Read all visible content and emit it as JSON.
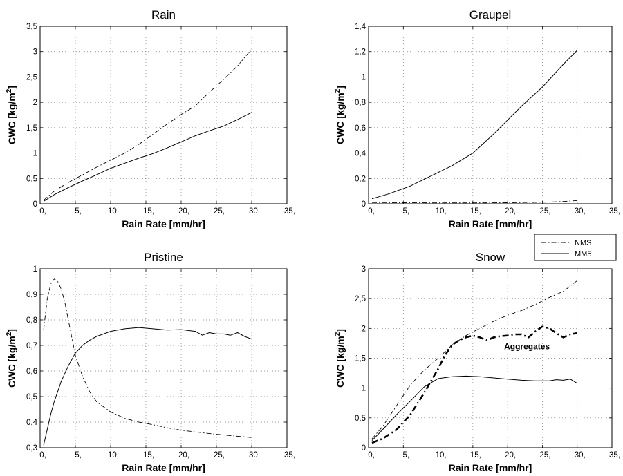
{
  "chart_data": [
    {
      "type": "line",
      "title": "Rain",
      "xlabel": "Rain Rate [mm/hr]",
      "ylabel": "CWC [kg/m",
      "ylabel_sup": "2",
      "ylabel_end": "]",
      "xlim": [
        0,
        35
      ],
      "ylim": [
        0,
        3.5
      ],
      "xticks": [
        "0,",
        "5,",
        "10,",
        "15,",
        "20,",
        "25,",
        "30,",
        "35,"
      ],
      "yticks": [
        "0",
        "0,5",
        "1",
        "1,5",
        "2",
        "2,5",
        "3",
        "3,5"
      ],
      "grid": true,
      "series": [
        {
          "name": "NMS",
          "style": "dashdot",
          "x": [
            0.5,
            2,
            4,
            6,
            8,
            10,
            12,
            14,
            16,
            18,
            20,
            22,
            24,
            26,
            28,
            30
          ],
          "y": [
            0.07,
            0.25,
            0.42,
            0.57,
            0.72,
            0.86,
            1.0,
            1.17,
            1.37,
            1.57,
            1.76,
            1.93,
            2.2,
            2.45,
            2.72,
            3.05
          ]
        },
        {
          "name": "MM5",
          "style": "solid",
          "x": [
            0.5,
            2,
            4,
            6,
            8,
            10,
            12,
            14,
            16,
            18,
            20,
            22,
            24,
            26,
            28,
            30
          ],
          "y": [
            0.05,
            0.18,
            0.32,
            0.45,
            0.57,
            0.7,
            0.8,
            0.9,
            0.99,
            1.1,
            1.22,
            1.34,
            1.44,
            1.53,
            1.66,
            1.8
          ]
        }
      ]
    },
    {
      "type": "line",
      "title": "Graupel",
      "xlabel": "Rain Rate [mm/hr]",
      "ylabel": "CWC [kg/m",
      "ylabel_sup": "2",
      "ylabel_end": "]",
      "xlim": [
        0,
        35
      ],
      "ylim": [
        0,
        1.4
      ],
      "xticks": [
        "0,",
        "5,",
        "10,",
        "15,",
        "20,",
        "25,",
        "30,",
        "35,"
      ],
      "yticks": [
        "0",
        "0,2",
        "0,4",
        "0,6",
        "0,8",
        "1",
        "1,2",
        "1,4"
      ],
      "grid": true,
      "series": [
        {
          "name": "NMS",
          "style": "dashdot",
          "x": [
            0.5,
            5,
            10,
            15,
            20,
            25,
            28,
            30
          ],
          "y": [
            0.01,
            0.008,
            0.007,
            0.007,
            0.008,
            0.012,
            0.018,
            0.025
          ]
        },
        {
          "name": "MM5",
          "style": "solid",
          "x": [
            0.5,
            3,
            6,
            9,
            12,
            15,
            18,
            20,
            22,
            25,
            28,
            30
          ],
          "y": [
            0.04,
            0.08,
            0.14,
            0.22,
            0.3,
            0.4,
            0.55,
            0.66,
            0.77,
            0.92,
            1.1,
            1.21
          ]
        }
      ]
    },
    {
      "type": "line",
      "title": "Pristine",
      "xlabel": "Rain Rate [mm/hr]",
      "ylabel": "CWC [kg/m",
      "ylabel_sup": "2",
      "ylabel_end": "]",
      "xlim": [
        0,
        35
      ],
      "ylim": [
        0.3,
        1.0
      ],
      "xticks": [
        "0,",
        "5,",
        "10,",
        "15,",
        "20,",
        "25,",
        "30,",
        "35,"
      ],
      "yticks": [
        "0,3",
        "0,4",
        "0,5",
        "0,6",
        "0,7",
        "0,8",
        "0,9",
        "1"
      ],
      "grid": true,
      "series": [
        {
          "name": "NMS",
          "style": "dashdot",
          "x": [
            0.5,
            1,
            1.5,
            2,
            2.5,
            3,
            3.5,
            4,
            4.5,
            5,
            6,
            7,
            8,
            10,
            12,
            14,
            16,
            18,
            20,
            22,
            24,
            26,
            28,
            30
          ],
          "y": [
            0.76,
            0.88,
            0.94,
            0.96,
            0.95,
            0.92,
            0.87,
            0.8,
            0.73,
            0.66,
            0.58,
            0.52,
            0.48,
            0.44,
            0.415,
            0.4,
            0.39,
            0.378,
            0.368,
            0.362,
            0.355,
            0.35,
            0.345,
            0.34
          ]
        },
        {
          "name": "MM5",
          "style": "solid",
          "x": [
            0.5,
            1,
            1.5,
            2,
            3,
            4,
            5,
            6,
            7,
            8,
            9,
            10,
            12,
            14,
            16,
            18,
            20,
            22,
            23,
            24,
            25,
            26,
            27,
            28,
            29,
            30
          ],
          "y": [
            0.31,
            0.37,
            0.43,
            0.48,
            0.56,
            0.62,
            0.67,
            0.7,
            0.72,
            0.735,
            0.745,
            0.755,
            0.765,
            0.77,
            0.765,
            0.76,
            0.762,
            0.755,
            0.74,
            0.75,
            0.745,
            0.745,
            0.74,
            0.75,
            0.735,
            0.725
          ]
        }
      ]
    },
    {
      "type": "line",
      "title": "Snow",
      "xlabel": "Rain Rate [mm/hr]",
      "ylabel": "CWC [kg/m",
      "ylabel_sup": "2",
      "ylabel_end": "]",
      "xlim": [
        0,
        35
      ],
      "ylim": [
        0,
        3
      ],
      "xticks": [
        "0,",
        "5,",
        "10,",
        "15,",
        "20,",
        "25,",
        "30,",
        "35,"
      ],
      "yticks": [
        "0",
        "0,5",
        "1",
        "1,5",
        "2",
        "2,5",
        "3"
      ],
      "grid": true,
      "legend": {
        "position": "top-right",
        "entries": [
          {
            "label": "NMS",
            "style": "dashdot"
          },
          {
            "label": "MM5",
            "style": "solid"
          }
        ]
      },
      "annotations": [
        {
          "text": "Aggregates",
          "x": 19.5,
          "y": 1.65
        }
      ],
      "series": [
        {
          "name": "NMS",
          "style": "dashdot",
          "x": [
            0.5,
            2,
            4,
            6,
            8,
            10,
            12,
            14,
            16,
            18,
            20,
            22,
            24,
            26,
            28,
            30
          ],
          "y": [
            0.15,
            0.35,
            0.7,
            1.05,
            1.3,
            1.5,
            1.72,
            1.88,
            2.0,
            2.12,
            2.22,
            2.3,
            2.4,
            2.52,
            2.62,
            2.8
          ]
        },
        {
          "name": "MM5",
          "style": "solid",
          "x": [
            0.5,
            2,
            4,
            6,
            8,
            10,
            12,
            14,
            16,
            18,
            20,
            22,
            24,
            26,
            27,
            28,
            29,
            30
          ],
          "y": [
            0.12,
            0.3,
            0.55,
            0.78,
            1.02,
            1.16,
            1.19,
            1.2,
            1.19,
            1.17,
            1.15,
            1.13,
            1.12,
            1.12,
            1.14,
            1.13,
            1.15,
            1.08
          ]
        },
        {
          "name": "Aggregates",
          "style": "dashdot-bold",
          "x": [
            0.5,
            2,
            4,
            6,
            8,
            10,
            11,
            12,
            13,
            14,
            15,
            16,
            17,
            18,
            19,
            20,
            21,
            22,
            23,
            24,
            25,
            26,
            27,
            28,
            29,
            30
          ],
          "y": [
            0.08,
            0.15,
            0.3,
            0.55,
            0.92,
            1.32,
            1.55,
            1.72,
            1.8,
            1.85,
            1.88,
            1.85,
            1.8,
            1.85,
            1.87,
            1.88,
            1.9,
            1.9,
            1.85,
            1.95,
            2.03,
            2.0,
            1.92,
            1.85,
            1.9,
            1.92
          ]
        }
      ]
    }
  ]
}
